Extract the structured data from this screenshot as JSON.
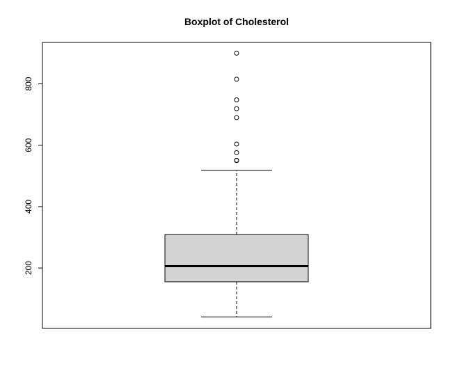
{
  "chart_data": {
    "type": "boxplot",
    "title": "Boxplot of Cholesterol",
    "xlabel": "",
    "ylabel": "",
    "ylim": [
      3,
      935
    ],
    "yticks": [
      200,
      400,
      600,
      800
    ],
    "series": [
      {
        "whisker_low": 40,
        "q1": 155,
        "median": 206,
        "q3": 309,
        "whisker_high": 518,
        "outliers": [
          550,
          551,
          576,
          604,
          690,
          719,
          748,
          815,
          900
        ]
      }
    ],
    "box_fill": "#d3d3d3",
    "line_color": "#000000",
    "grid": false,
    "legend": "none"
  }
}
